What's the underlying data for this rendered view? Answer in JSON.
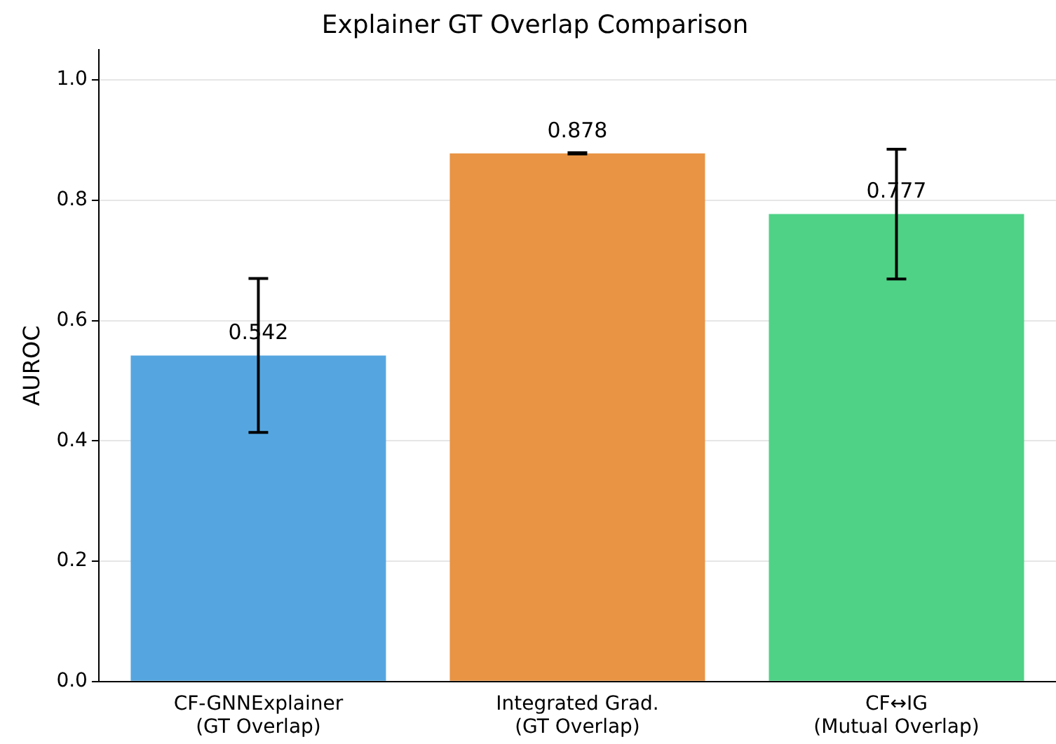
{
  "chart_data": {
    "type": "bar",
    "title": "Explainer GT Overlap Comparison",
    "ylabel": "AUROC",
    "categories": [
      "CF-GNNExplainer\n(GT Overlap)",
      "Integrated Grad.\n(GT Overlap)",
      "CF↔IG\n(Mutual Overlap)"
    ],
    "values": [
      0.542,
      0.878,
      0.777
    ],
    "colors": [
      "#55a6e0",
      "#e89444",
      "#4fd286"
    ],
    "errors": [
      0.128,
      0.001,
      0.108
    ],
    "ylim": [
      0,
      1.05
    ],
    "yticks": [
      {
        "value": 0,
        "label": "0.0"
      },
      0.2,
      0.4,
      0.6,
      0.8,
      {
        "value": 1,
        "label": "1.0"
      }
    ],
    "grid": "y",
    "data_labels": true
  }
}
